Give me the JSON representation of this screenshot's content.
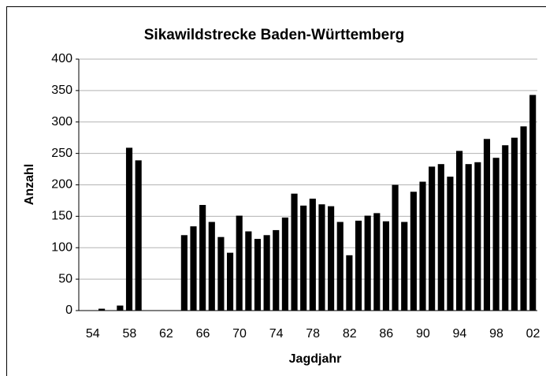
{
  "chart_data": {
    "type": "bar",
    "title": "Sikawildstrecke Baden-Württemberg",
    "x_label": "Jagdjahr",
    "y_label": "Anzahl",
    "categories": [
      "54",
      null,
      null,
      null,
      "58",
      null,
      null,
      null,
      "62",
      null,
      null,
      null,
      "66",
      null,
      null,
      null,
      "70",
      null,
      null,
      null,
      "74",
      null,
      null,
      null,
      "78",
      null,
      null,
      null,
      "82",
      null,
      null,
      null,
      "86",
      null,
      null,
      null,
      "90",
      null,
      null,
      null,
      "94",
      null,
      null,
      null,
      "98",
      null,
      null,
      null,
      "02",
      null
    ],
    "values": [
      0,
      0,
      3,
      0,
      8,
      259,
      239,
      0,
      0,
      0,
      0,
      120,
      134,
      168,
      141,
      117,
      92,
      151,
      126,
      114,
      120,
      128,
      148,
      186,
      167,
      178,
      169,
      166,
      141,
      88,
      143,
      151,
      155,
      142,
      200,
      141,
      189,
      205,
      229,
      233,
      213,
      254,
      233,
      236,
      273,
      243,
      263,
      275,
      293,
      343
    ],
    "color": "#000000",
    "ylim": [
      0,
      400
    ],
    "yticks": [
      0,
      50,
      100,
      150,
      200,
      250,
      300,
      350,
      400
    ],
    "grid": true
  }
}
